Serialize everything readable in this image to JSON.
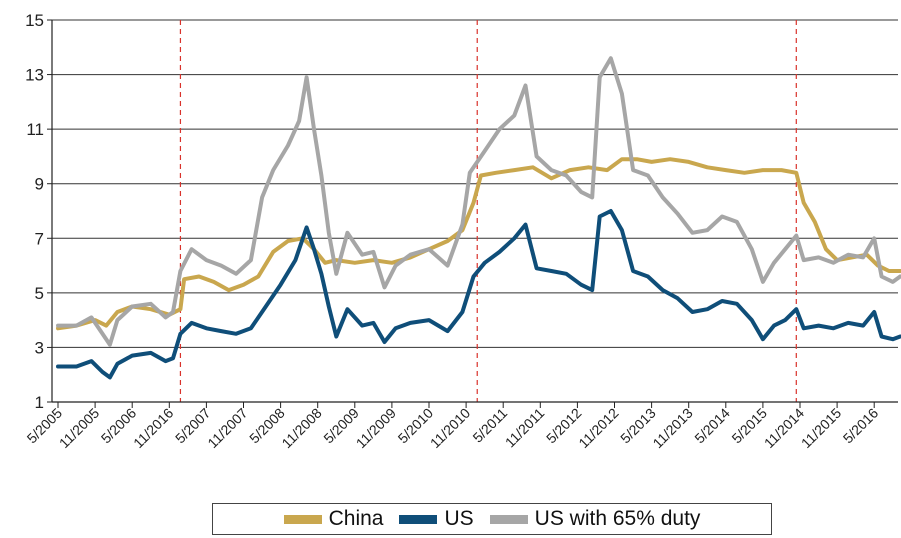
{
  "chart_data": {
    "type": "line",
    "title": "",
    "xlabel": "",
    "ylabel": "",
    "ylim": [
      1,
      15
    ],
    "yticks": [
      1,
      3,
      5,
      7,
      9,
      11,
      13,
      15
    ],
    "grid": "horizontal",
    "legend_position": "bottom",
    "x_tick_labels": [
      "5/2005",
      "11/2005",
      "5/2006",
      "11/2016",
      "5/2007",
      "11/2007",
      "5/2008",
      "11/2008",
      "5/2009",
      "11/2009",
      "5/2010",
      "11/2010",
      "5/2011",
      "11/2011",
      "5/2012",
      "11/2012",
      "5/2013",
      "11/2013",
      "5/2014",
      "5/2015",
      "11/2014",
      "11/2015",
      "5/2016"
    ],
    "reference_lines_at_tick_index": [
      3.3,
      11.3,
      19.9
    ],
    "series": [
      {
        "name": "China",
        "color": "#c9a74e",
        "points": [
          [
            0,
            3.7
          ],
          [
            0.5,
            3.8
          ],
          [
            1,
            4.0
          ],
          [
            1.3,
            3.8
          ],
          [
            1.6,
            4.3
          ],
          [
            2,
            4.5
          ],
          [
            2.5,
            4.4
          ],
          [
            3,
            4.2
          ],
          [
            3.3,
            4.4
          ],
          [
            3.4,
            5.5
          ],
          [
            3.8,
            5.6
          ],
          [
            4.2,
            5.4
          ],
          [
            4.6,
            5.1
          ],
          [
            5,
            5.3
          ],
          [
            5.4,
            5.6
          ],
          [
            5.8,
            6.5
          ],
          [
            6.2,
            6.9
          ],
          [
            6.6,
            7.0
          ],
          [
            6.9,
            6.6
          ],
          [
            7.2,
            6.1
          ],
          [
            7.5,
            6.2
          ],
          [
            8,
            6.1
          ],
          [
            8.5,
            6.2
          ],
          [
            9,
            6.1
          ],
          [
            9.5,
            6.3
          ],
          [
            10,
            6.6
          ],
          [
            10.5,
            6.9
          ],
          [
            10.9,
            7.3
          ],
          [
            11.2,
            8.3
          ],
          [
            11.4,
            9.3
          ],
          [
            11.8,
            9.4
          ],
          [
            12.3,
            9.5
          ],
          [
            12.8,
            9.6
          ],
          [
            13.3,
            9.2
          ],
          [
            13.8,
            9.5
          ],
          [
            14.3,
            9.6
          ],
          [
            14.8,
            9.5
          ],
          [
            15.2,
            9.9
          ],
          [
            15.6,
            9.9
          ],
          [
            16,
            9.8
          ],
          [
            16.5,
            9.9
          ],
          [
            17,
            9.8
          ],
          [
            17.5,
            9.6
          ],
          [
            18,
            9.5
          ],
          [
            18.5,
            9.4
          ],
          [
            19,
            9.5
          ],
          [
            19.5,
            9.5
          ],
          [
            19.9,
            9.4
          ],
          [
            20.1,
            8.3
          ],
          [
            20.4,
            7.6
          ],
          [
            20.7,
            6.6
          ],
          [
            21,
            6.2
          ],
          [
            21.4,
            6.3
          ],
          [
            21.8,
            6.4
          ],
          [
            22.1,
            6.0
          ],
          [
            22.4,
            5.8
          ],
          [
            22.7,
            5.8
          ]
        ]
      },
      {
        "name": "US",
        "color": "#0f4e79",
        "points": [
          [
            0,
            2.3
          ],
          [
            0.5,
            2.3
          ],
          [
            0.9,
            2.5
          ],
          [
            1.2,
            2.1
          ],
          [
            1.4,
            1.9
          ],
          [
            1.6,
            2.4
          ],
          [
            2,
            2.7
          ],
          [
            2.5,
            2.8
          ],
          [
            2.9,
            2.5
          ],
          [
            3.1,
            2.6
          ],
          [
            3.3,
            3.5
          ],
          [
            3.6,
            3.9
          ],
          [
            4,
            3.7
          ],
          [
            4.4,
            3.6
          ],
          [
            4.8,
            3.5
          ],
          [
            5.2,
            3.7
          ],
          [
            5.6,
            4.5
          ],
          [
            6,
            5.3
          ],
          [
            6.4,
            6.2
          ],
          [
            6.7,
            7.4
          ],
          [
            6.9,
            6.6
          ],
          [
            7.1,
            5.7
          ],
          [
            7.3,
            4.5
          ],
          [
            7.5,
            3.4
          ],
          [
            7.8,
            4.4
          ],
          [
            8.2,
            3.8
          ],
          [
            8.5,
            3.9
          ],
          [
            8.8,
            3.2
          ],
          [
            9.1,
            3.7
          ],
          [
            9.5,
            3.9
          ],
          [
            10,
            4.0
          ],
          [
            10.5,
            3.6
          ],
          [
            10.9,
            4.3
          ],
          [
            11.2,
            5.6
          ],
          [
            11.5,
            6.1
          ],
          [
            11.9,
            6.5
          ],
          [
            12.3,
            7.0
          ],
          [
            12.6,
            7.5
          ],
          [
            12.9,
            5.9
          ],
          [
            13.3,
            5.8
          ],
          [
            13.7,
            5.7
          ],
          [
            14.1,
            5.3
          ],
          [
            14.4,
            5.1
          ],
          [
            14.6,
            7.8
          ],
          [
            14.9,
            8.0
          ],
          [
            15.2,
            7.3
          ],
          [
            15.5,
            5.8
          ],
          [
            15.9,
            5.6
          ],
          [
            16.3,
            5.1
          ],
          [
            16.7,
            4.8
          ],
          [
            17.1,
            4.3
          ],
          [
            17.5,
            4.4
          ],
          [
            17.9,
            4.7
          ],
          [
            18.3,
            4.6
          ],
          [
            18.7,
            4.0
          ],
          [
            19,
            3.3
          ],
          [
            19.3,
            3.8
          ],
          [
            19.6,
            4.0
          ],
          [
            19.9,
            4.4
          ],
          [
            20.1,
            3.7
          ],
          [
            20.5,
            3.8
          ],
          [
            20.9,
            3.7
          ],
          [
            21.3,
            3.9
          ],
          [
            21.7,
            3.8
          ],
          [
            22,
            4.3
          ],
          [
            22.2,
            3.4
          ],
          [
            22.5,
            3.3
          ],
          [
            22.7,
            3.4
          ]
        ]
      },
      {
        "name": "US with 65% duty",
        "color": "#a6a6a6",
        "points": [
          [
            0,
            3.8
          ],
          [
            0.5,
            3.8
          ],
          [
            0.9,
            4.1
          ],
          [
            1.2,
            3.5
          ],
          [
            1.4,
            3.1
          ],
          [
            1.6,
            4.0
          ],
          [
            2,
            4.5
          ],
          [
            2.5,
            4.6
          ],
          [
            2.9,
            4.1
          ],
          [
            3.1,
            4.3
          ],
          [
            3.3,
            5.8
          ],
          [
            3.6,
            6.6
          ],
          [
            4,
            6.2
          ],
          [
            4.4,
            6.0
          ],
          [
            4.8,
            5.7
          ],
          [
            5.2,
            6.2
          ],
          [
            5.5,
            8.5
          ],
          [
            5.8,
            9.5
          ],
          [
            6.2,
            10.4
          ],
          [
            6.5,
            11.3
          ],
          [
            6.7,
            12.9
          ],
          [
            6.9,
            11.0
          ],
          [
            7.1,
            9.3
          ],
          [
            7.3,
            7.2
          ],
          [
            7.5,
            5.7
          ],
          [
            7.8,
            7.2
          ],
          [
            8.2,
            6.4
          ],
          [
            8.5,
            6.5
          ],
          [
            8.8,
            5.2
          ],
          [
            9.1,
            6.0
          ],
          [
            9.5,
            6.4
          ],
          [
            10,
            6.6
          ],
          [
            10.5,
            6.0
          ],
          [
            10.9,
            7.5
          ],
          [
            11.1,
            9.4
          ],
          [
            11.5,
            10.2
          ],
          [
            11.9,
            11.0
          ],
          [
            12.3,
            11.5
          ],
          [
            12.6,
            12.6
          ],
          [
            12.9,
            10.0
          ],
          [
            13.3,
            9.5
          ],
          [
            13.7,
            9.3
          ],
          [
            14.1,
            8.7
          ],
          [
            14.4,
            8.5
          ],
          [
            14.6,
            12.9
          ],
          [
            14.9,
            13.6
          ],
          [
            15.2,
            12.3
          ],
          [
            15.5,
            9.5
          ],
          [
            15.9,
            9.3
          ],
          [
            16.3,
            8.5
          ],
          [
            16.7,
            7.9
          ],
          [
            17.1,
            7.2
          ],
          [
            17.5,
            7.3
          ],
          [
            17.9,
            7.8
          ],
          [
            18.3,
            7.6
          ],
          [
            18.7,
            6.6
          ],
          [
            19,
            5.4
          ],
          [
            19.3,
            6.1
          ],
          [
            19.6,
            6.6
          ],
          [
            19.9,
            7.1
          ],
          [
            20.1,
            6.2
          ],
          [
            20.5,
            6.3
          ],
          [
            20.9,
            6.1
          ],
          [
            21.3,
            6.4
          ],
          [
            21.7,
            6.3
          ],
          [
            22,
            7.0
          ],
          [
            22.2,
            5.6
          ],
          [
            22.5,
            5.4
          ],
          [
            22.7,
            5.6
          ]
        ]
      }
    ]
  }
}
